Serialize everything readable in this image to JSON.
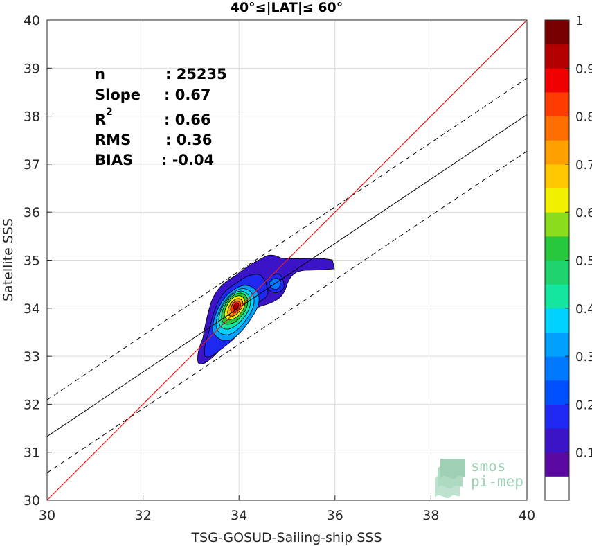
{
  "chart_data": {
    "type": "heatmap",
    "title": "40°≤|LAT|≤ 60°",
    "xlabel": "TSG-GOSUD-Sailing-ship SSS",
    "ylabel": "Satellite SSS",
    "xlim": [
      30,
      40
    ],
    "ylim": [
      30,
      40
    ],
    "x_ticks": [
      "30",
      "32",
      "34",
      "36",
      "38",
      "40"
    ],
    "y_ticks": [
      "30",
      "31",
      "32",
      "33",
      "34",
      "35",
      "36",
      "37",
      "38",
      "39",
      "40"
    ],
    "grid": true,
    "colorbar": {
      "range": [
        0,
        1
      ],
      "ticks": [
        "0.1",
        "0.2",
        "0.3",
        "0.4",
        "0.5",
        "0.6",
        "0.7",
        "0.8",
        "0.9",
        "1"
      ],
      "levels": 19,
      "colors": [
        "#ffffff",
        "#5a0aa0",
        "#3c14c8",
        "#1e28f0",
        "#0050ff",
        "#0078ff",
        "#00a0ff",
        "#00d2ff",
        "#14e6a0",
        "#1ed26e",
        "#28c83c",
        "#8cdc1e",
        "#f0f000",
        "#ffc800",
        "#ffa000",
        "#ff6e00",
        "#ff3c00",
        "#f00000",
        "#b40000",
        "#780000"
      ]
    },
    "stats": [
      {
        "label": "n",
        "value": ": 25235"
      },
      {
        "label": "Slope",
        "value": ": 0.67"
      },
      {
        "label": "R",
        "sup": "2",
        "value": ": 0.66"
      },
      {
        "label": "RMS",
        "value": ": 0.36"
      },
      {
        "label": "BIAS",
        "value": ": -0.04"
      }
    ],
    "lines": {
      "identity": {
        "slope": 1,
        "intercept": 0,
        "color": "#e02020"
      },
      "fit": {
        "slope": 0.67,
        "intercept": 11.23
      },
      "fit_band": 0.76
    },
    "density_peaks": [
      {
        "x": 34.0,
        "y": 34.05,
        "value": 1.0
      },
      {
        "x": 34.75,
        "y": 34.45,
        "value": 0.3
      }
    ]
  },
  "logo": {
    "line1": "smos",
    "line2": "pi-mep"
  }
}
